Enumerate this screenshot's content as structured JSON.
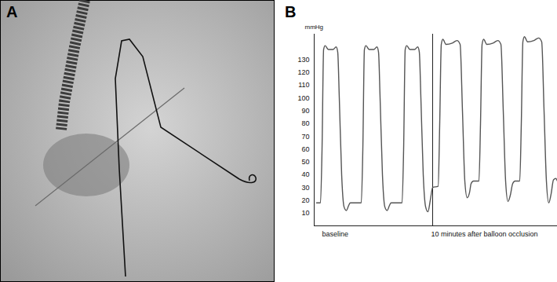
{
  "panel_labels": [
    "A",
    "B"
  ],
  "chart_data": {
    "type": "line",
    "y_label": "mmHg",
    "xlim": [
      0,
      310
    ],
    "ylim": [
      0,
      150
    ],
    "yticks": [
      10,
      20,
      30,
      40,
      50,
      60,
      70,
      80,
      90,
      100,
      110,
      120,
      130
    ],
    "tick_labels": "y",
    "divider": 151,
    "annotations": [
      {
        "text": "baseline",
        "x": 10
      },
      {
        "text": "10 minutes after balloon occlusion",
        "x": 149
      }
    ],
    "x": [
      3,
      8,
      10,
      12,
      14,
      18,
      24,
      28,
      30,
      32,
      35,
      38,
      41,
      44,
      46,
      60,
      62,
      64,
      66,
      70,
      76,
      80,
      82,
      84,
      87,
      90,
      93,
      96,
      98,
      112,
      114,
      116,
      118,
      122,
      128,
      132,
      134,
      136,
      139,
      142,
      145,
      148,
      151,
      158,
      160,
      162,
      164,
      168,
      176,
      182,
      186,
      189,
      192,
      195,
      198,
      200,
      203,
      210,
      212,
      214,
      216,
      220,
      228,
      234,
      238,
      241,
      244,
      247,
      250,
      253,
      256,
      262,
      264,
      266,
      268,
      272,
      280,
      286,
      290,
      293,
      296,
      299,
      302,
      305,
      308,
      310
    ],
    "series": [
      {
        "color": "#555555",
        "values": [
          18,
          18,
          60,
          138,
          141,
          138,
          138,
          140,
          136,
          100,
          40,
          15,
          12,
          16,
          18,
          18,
          60,
          138,
          141,
          138,
          138,
          140,
          136,
          100,
          40,
          15,
          12,
          16,
          18,
          18,
          60,
          138,
          141,
          138,
          138,
          140,
          136,
          100,
          40,
          15,
          11,
          20,
          30,
          31,
          80,
          142,
          146,
          142,
          143,
          145,
          142,
          90,
          35,
          22,
          26,
          33,
          35,
          35,
          80,
          142,
          146,
          142,
          143,
          145,
          142,
          90,
          35,
          19,
          24,
          33,
          35,
          35,
          80,
          144,
          148,
          144,
          145,
          147,
          144,
          90,
          35,
          18,
          25,
          36,
          37,
          35
        ]
      }
    ]
  }
}
